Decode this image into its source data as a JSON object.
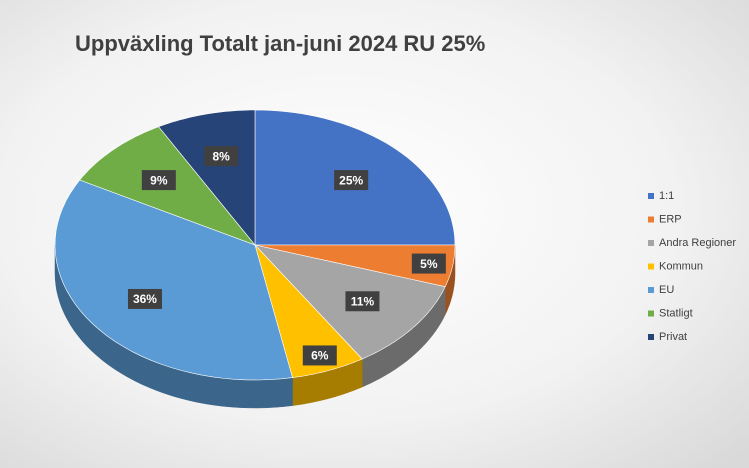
{
  "chart_data": {
    "type": "pie",
    "title": "Uppväxling Totalt jan-juni 2024 RU 25%",
    "categories": [
      "1:1",
      "ERP",
      "Andra Regioner",
      "Kommun",
      "EU",
      "Statligt",
      "Privat"
    ],
    "values": [
      25,
      5,
      11,
      6,
      36,
      9,
      8
    ],
    "value_labels": [
      "25%",
      "5%",
      "11%",
      "6%",
      "36%",
      "9%",
      "8%"
    ],
    "colors": [
      "#4472c4",
      "#ed7d31",
      "#a5a5a5",
      "#ffc000",
      "#5b9bd5",
      "#70ad47",
      "#264478"
    ],
    "legend": "right"
  }
}
